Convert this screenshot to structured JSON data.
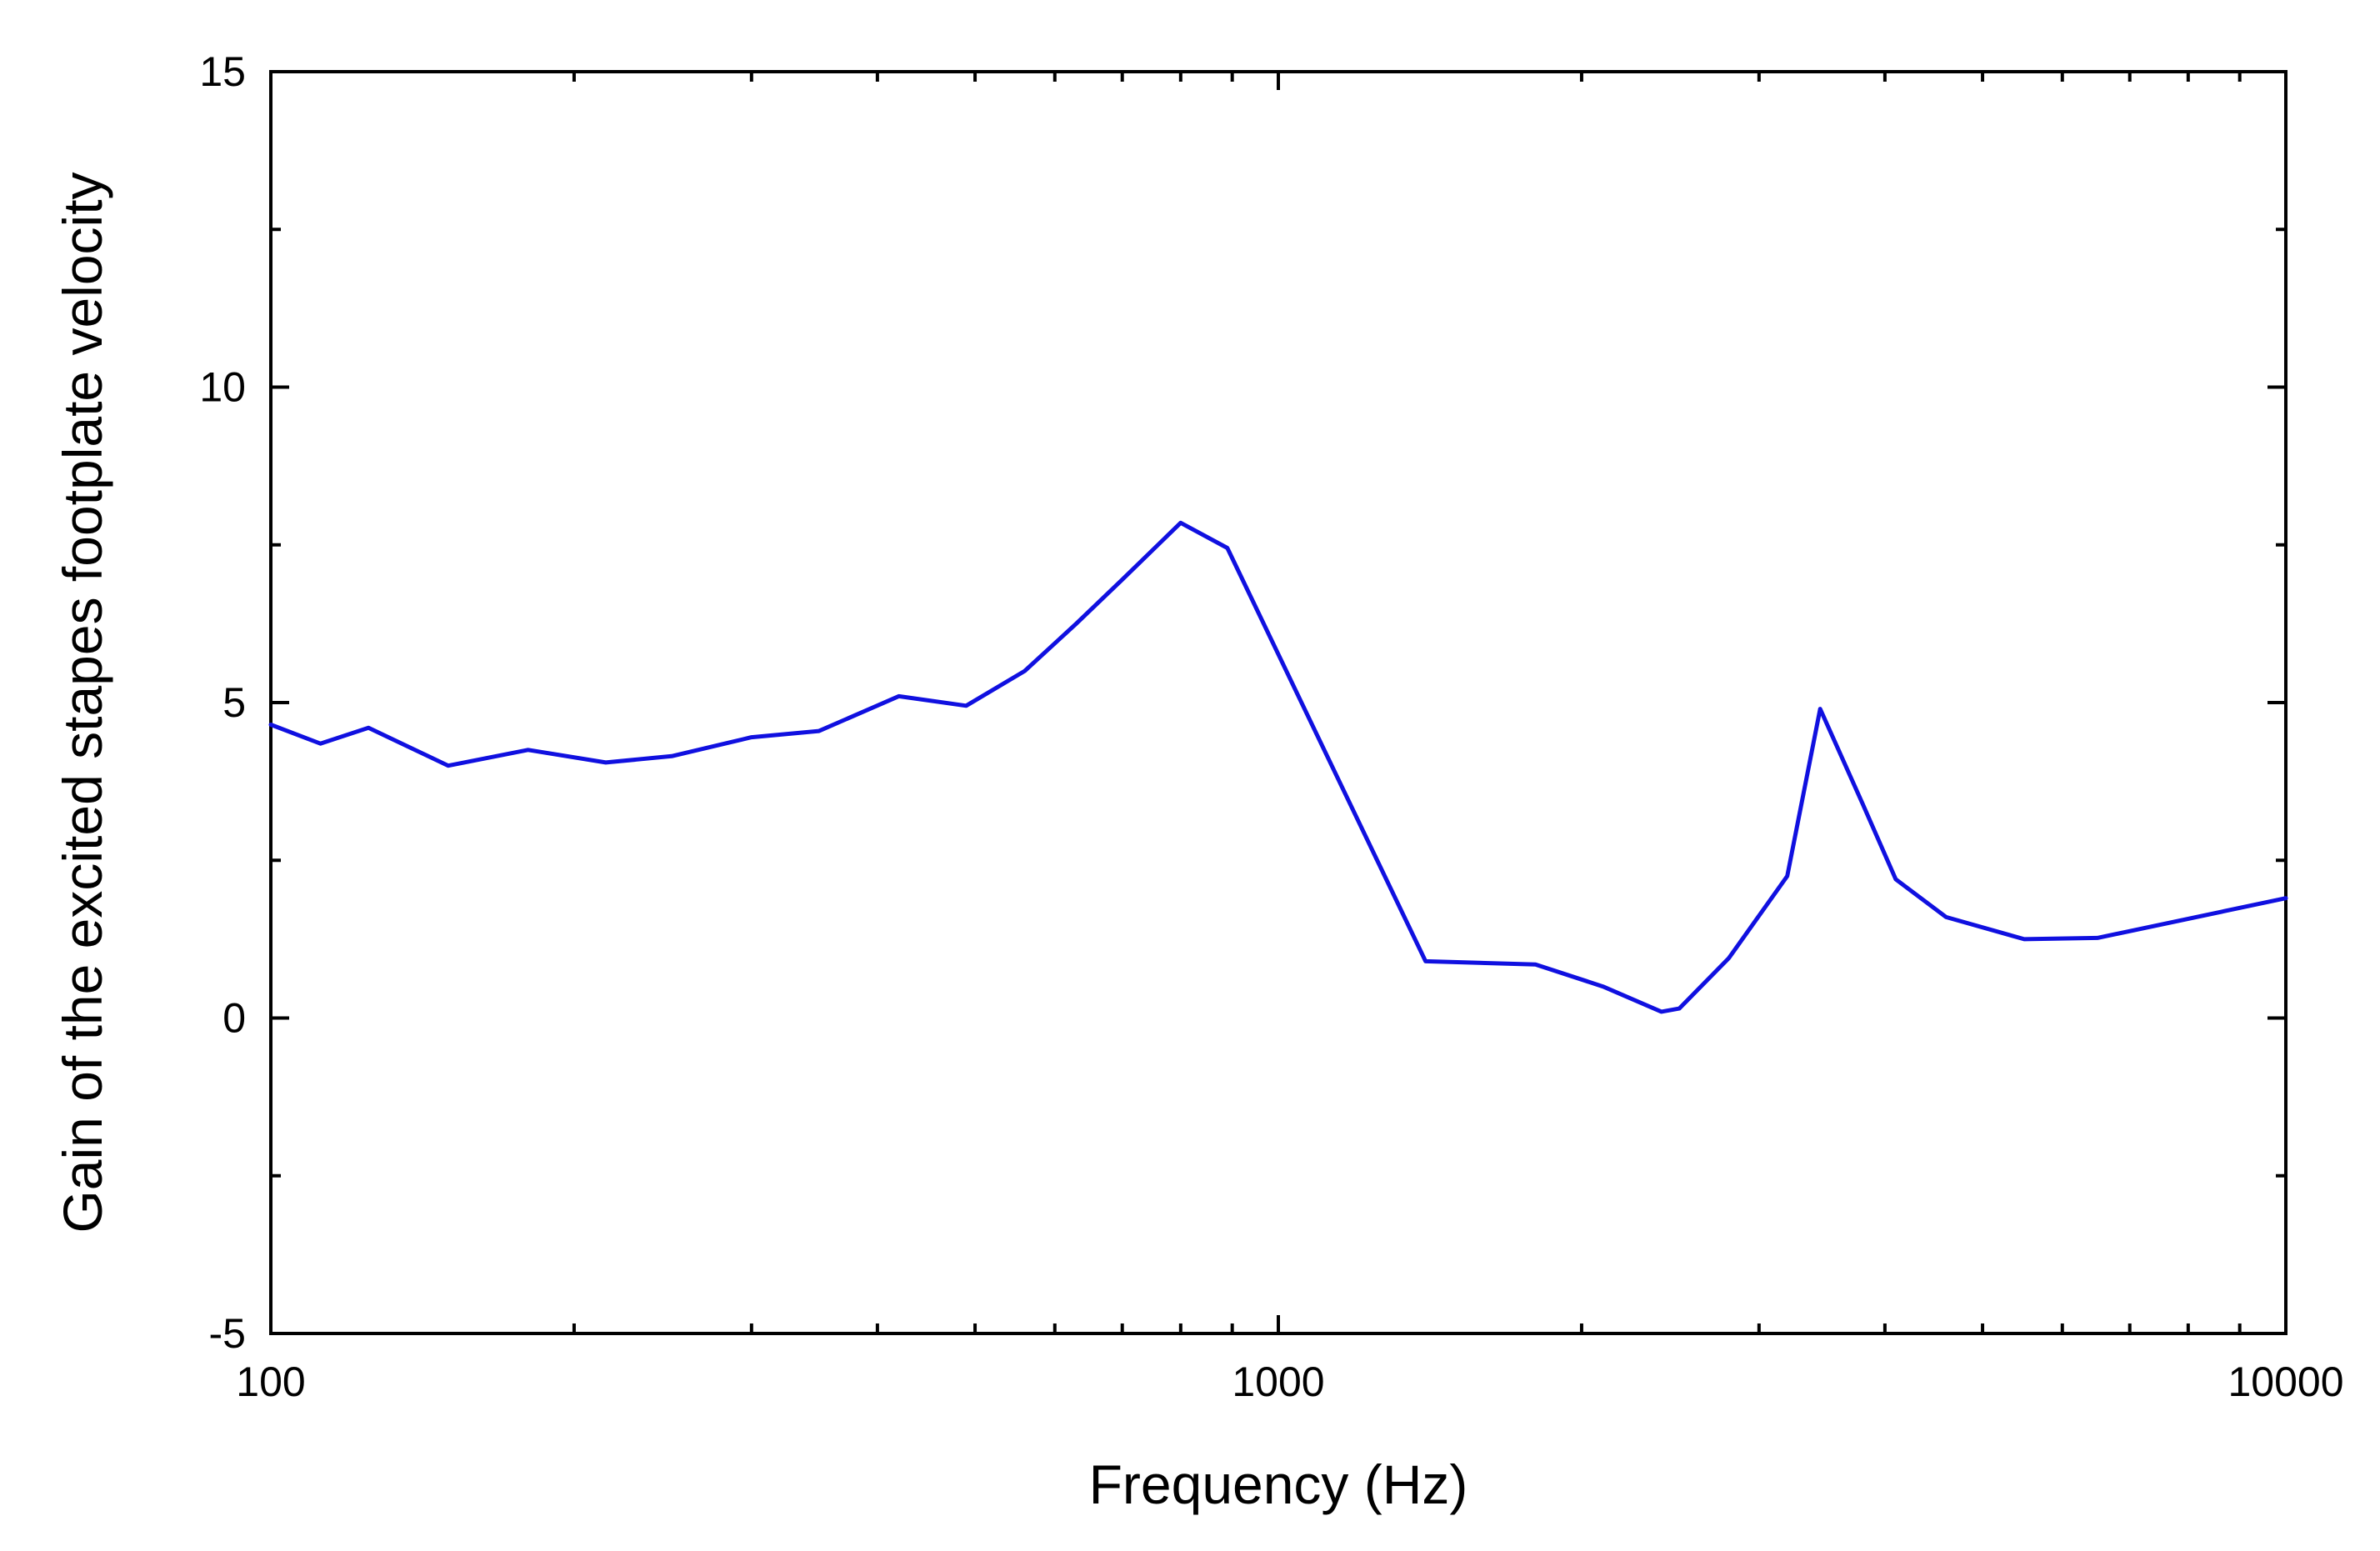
{
  "chart_data": {
    "type": "line",
    "title": "",
    "xlabel": "Frequency (Hz)",
    "ylabel": "Gain of the excited stapes footplate velocity",
    "x_scale": "log",
    "xlim": [
      100,
      10000
    ],
    "ylim": [
      -5,
      15
    ],
    "x_ticks": [
      100,
      1000,
      10000
    ],
    "x_tick_labels": [
      "100",
      "1000",
      "10000"
    ],
    "y_ticks": [
      -5,
      0,
      5,
      10,
      15
    ],
    "y_tick_labels": [
      "-5",
      "0",
      "5",
      "10",
      "15"
    ],
    "grid": false,
    "legend": "none",
    "series_color": "#1010e0",
    "series": [
      {
        "x": [
          100,
          112,
          125,
          150,
          180,
          215,
          250,
          300,
          350,
          420,
          490,
          560,
          630,
          700,
          800,
          890,
          1400,
          1800,
          2100,
          2400,
          2500,
          2800,
          3200,
          3450,
          3800,
          4100,
          4600,
          5500,
          6500,
          10000
        ],
        "values": [
          4.65,
          4.35,
          4.6,
          4.0,
          4.25,
          4.05,
          4.15,
          4.45,
          4.55,
          5.1,
          4.95,
          5.5,
          6.25,
          6.95,
          7.85,
          7.45,
          0.9,
          0.85,
          0.5,
          0.1,
          0.15,
          0.95,
          2.25,
          4.9,
          3.4,
          2.2,
          1.6,
          1.25,
          1.27,
          1.9
        ]
      }
    ]
  }
}
